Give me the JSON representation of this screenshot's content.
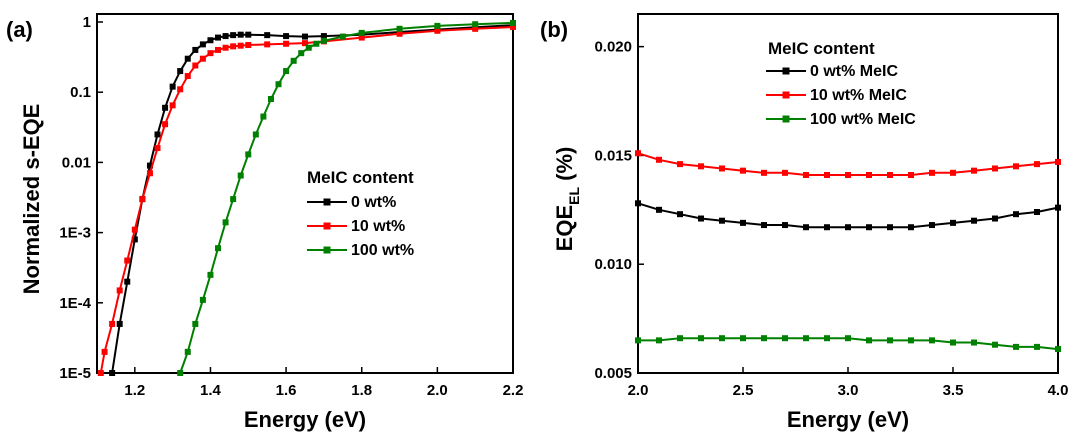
{
  "chart_data": [
    {
      "panel_label": "(a)",
      "type": "line",
      "xlabel": "Energy (eV)",
      "ylabel": "Normalized s-EQE",
      "xlim": [
        1.1,
        2.2
      ],
      "ylim": [
        1e-05,
        1.3
      ],
      "yscale": "log",
      "xticks": [
        1.2,
        1.4,
        1.6,
        1.8,
        2.0,
        2.2
      ],
      "xtick_labels": [
        "1.2",
        "1.4",
        "1.6",
        "1.8",
        "2.0",
        "2.2"
      ],
      "yticks": [
        1e-05,
        0.0001,
        0.001,
        0.01,
        0.1,
        1
      ],
      "ytick_labels": [
        "1E-5",
        "1E-4",
        "1E-3",
        "0.01",
        "0.1",
        "1"
      ],
      "legend_title": "MeIC content",
      "legend_position": "center-right",
      "series": [
        {
          "name": "0 wt%",
          "color": "#000000",
          "x": [
            1.14,
            1.16,
            1.18,
            1.2,
            1.22,
            1.24,
            1.26,
            1.28,
            1.3,
            1.32,
            1.34,
            1.36,
            1.38,
            1.4,
            1.42,
            1.44,
            1.46,
            1.48,
            1.5,
            1.55,
            1.6,
            1.65,
            1.7,
            1.8,
            1.9,
            2.0,
            2.1,
            2.2
          ],
          "y": [
            1e-05,
            5e-05,
            0.0002,
            0.0008,
            0.003,
            0.009,
            0.025,
            0.06,
            0.12,
            0.2,
            0.3,
            0.4,
            0.48,
            0.55,
            0.6,
            0.63,
            0.65,
            0.66,
            0.66,
            0.65,
            0.63,
            0.62,
            0.63,
            0.66,
            0.72,
            0.78,
            0.84,
            0.9
          ]
        },
        {
          "name": "10 wt%",
          "color": "#ff0000",
          "x": [
            1.11,
            1.12,
            1.14,
            1.16,
            1.18,
            1.2,
            1.22,
            1.24,
            1.26,
            1.28,
            1.3,
            1.32,
            1.34,
            1.36,
            1.38,
            1.4,
            1.42,
            1.44,
            1.46,
            1.48,
            1.5,
            1.55,
            1.6,
            1.65,
            1.7,
            1.8,
            1.9,
            2.0,
            2.1,
            2.2
          ],
          "y": [
            1e-05,
            2e-05,
            5e-05,
            0.00015,
            0.0004,
            0.0011,
            0.003,
            0.007,
            0.016,
            0.035,
            0.065,
            0.11,
            0.17,
            0.24,
            0.3,
            0.36,
            0.4,
            0.43,
            0.45,
            0.46,
            0.47,
            0.48,
            0.49,
            0.5,
            0.53,
            0.6,
            0.68,
            0.75,
            0.8,
            0.85
          ]
        },
        {
          "name": "100 wt%",
          "color": "#008000",
          "x": [
            1.32,
            1.34,
            1.36,
            1.38,
            1.4,
            1.42,
            1.44,
            1.46,
            1.48,
            1.5,
            1.52,
            1.54,
            1.56,
            1.58,
            1.6,
            1.62,
            1.64,
            1.66,
            1.68,
            1.7,
            1.75,
            1.8,
            1.9,
            2.0,
            2.1,
            2.2
          ],
          "y": [
            1e-05,
            2e-05,
            5e-05,
            0.00011,
            0.00025,
            0.0006,
            0.0014,
            0.003,
            0.0065,
            0.013,
            0.025,
            0.045,
            0.08,
            0.13,
            0.2,
            0.28,
            0.36,
            0.43,
            0.49,
            0.54,
            0.62,
            0.7,
            0.8,
            0.88,
            0.93,
            0.97
          ]
        }
      ]
    },
    {
      "panel_label": "(b)",
      "type": "line",
      "xlabel": "Energy (eV)",
      "ylabel": "EQE",
      "ylabel_sub": "EL",
      "ylabel_suffix": " (%)",
      "xlim": [
        2.0,
        4.0
      ],
      "ylim": [
        0.005,
        0.0215
      ],
      "xticks": [
        2.0,
        2.5,
        3.0,
        3.5,
        4.0
      ],
      "xtick_labels": [
        "2.0",
        "2.5",
        "3.0",
        "3.5",
        "4.0"
      ],
      "yticks": [
        0.005,
        0.01,
        0.015,
        0.02
      ],
      "ytick_labels": [
        "0.005",
        "0.010",
        "0.015",
        "0.020"
      ],
      "legend_title": "MeIC content",
      "legend_position": "top-center",
      "series": [
        {
          "name": "0 wt% MeIC",
          "color": "#000000",
          "x": [
            2.0,
            2.1,
            2.2,
            2.3,
            2.4,
            2.5,
            2.6,
            2.7,
            2.8,
            2.9,
            3.0,
            3.1,
            3.2,
            3.3,
            3.4,
            3.5,
            3.6,
            3.7,
            3.8,
            3.9,
            4.0
          ],
          "y": [
            0.0128,
            0.0125,
            0.0123,
            0.0121,
            0.012,
            0.0119,
            0.0118,
            0.0118,
            0.0117,
            0.0117,
            0.0117,
            0.0117,
            0.0117,
            0.0117,
            0.0118,
            0.0119,
            0.012,
            0.0121,
            0.0123,
            0.0124,
            0.0126
          ]
        },
        {
          "name": "10 wt% MeIC",
          "color": "#ff0000",
          "x": [
            2.0,
            2.1,
            2.2,
            2.3,
            2.4,
            2.5,
            2.6,
            2.7,
            2.8,
            2.9,
            3.0,
            3.1,
            3.2,
            3.3,
            3.4,
            3.5,
            3.6,
            3.7,
            3.8,
            3.9,
            4.0
          ],
          "y": [
            0.0151,
            0.0148,
            0.0146,
            0.0145,
            0.0144,
            0.0143,
            0.0142,
            0.0142,
            0.0141,
            0.0141,
            0.0141,
            0.0141,
            0.0141,
            0.0141,
            0.0142,
            0.0142,
            0.0143,
            0.0144,
            0.0145,
            0.0146,
            0.0147
          ]
        },
        {
          "name": "100 wt% MeIC",
          "color": "#008000",
          "x": [
            2.0,
            2.1,
            2.2,
            2.3,
            2.4,
            2.5,
            2.6,
            2.7,
            2.8,
            2.9,
            3.0,
            3.1,
            3.2,
            3.3,
            3.4,
            3.5,
            3.6,
            3.7,
            3.8,
            3.9,
            4.0
          ],
          "y": [
            0.0065,
            0.0065,
            0.0066,
            0.0066,
            0.0066,
            0.0066,
            0.0066,
            0.0066,
            0.0066,
            0.0066,
            0.0066,
            0.0065,
            0.0065,
            0.0065,
            0.0065,
            0.0064,
            0.0064,
            0.0063,
            0.0062,
            0.0062,
            0.0061
          ]
        }
      ]
    }
  ]
}
